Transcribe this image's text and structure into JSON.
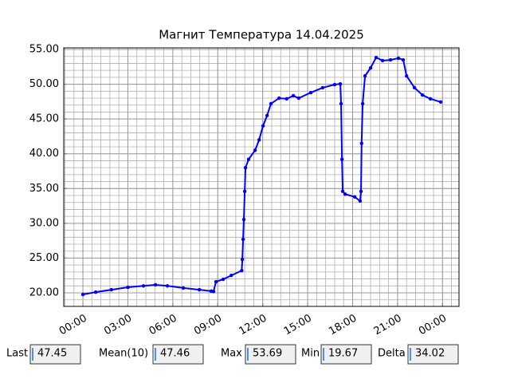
{
  "chart_data": {
    "type": "line",
    "title": "Магнит Температура 14.04.2025",
    "x": [
      0,
      0.85,
      1.9,
      3.0,
      4.04,
      4.84,
      5.64,
      6.7,
      7.77,
      8.56,
      8.72,
      8.88,
      9.36,
      9.9,
      10.6,
      10.64,
      10.69,
      10.74,
      10.8,
      10.85,
      11.06,
      11.49,
      11.76,
      12.02,
      12.29,
      12.55,
      13.09,
      13.6,
      14.04,
      14.4,
      15.21,
      16.0,
      16.8,
      17.18,
      17.23,
      17.29,
      17.34,
      17.5,
      18.14,
      18.5,
      18.56,
      18.6,
      18.67,
      18.83,
      19.2,
      19.57,
      20.0,
      20.53,
      21.06,
      21.38,
      21.6,
      22.13,
      22.66,
      23.19,
      23.88
    ],
    "series": [
      {
        "name": "Температура",
        "color": "#0000ff",
        "values": [
          19.77,
          20.1,
          20.45,
          20.8,
          21.0,
          21.15,
          21.0,
          20.7,
          20.45,
          20.25,
          20.2,
          21.6,
          21.95,
          22.5,
          23.2,
          24.8,
          27.7,
          30.55,
          34.6,
          38.0,
          39.2,
          40.5,
          42.0,
          44.0,
          45.5,
          47.2,
          48.0,
          47.9,
          48.35,
          48.0,
          48.8,
          49.5,
          49.95,
          50.05,
          47.2,
          39.2,
          34.6,
          34.2,
          33.8,
          33.2,
          34.6,
          41.5,
          47.2,
          51.2,
          52.35,
          53.85,
          53.4,
          53.5,
          53.75,
          53.5,
          51.2,
          49.5,
          48.45,
          47.9,
          47.45
        ]
      }
    ],
    "xlim": [
      -1.28,
      25.1
    ],
    "xticks": [
      {
        "value": 0,
        "label": "00:00"
      },
      {
        "value": 3,
        "label": "03:00"
      },
      {
        "value": 6,
        "label": "06:00"
      },
      {
        "value": 9,
        "label": "09:00"
      },
      {
        "value": 12,
        "label": "12:00"
      },
      {
        "value": 15,
        "label": "15:00"
      },
      {
        "value": 18,
        "label": "18:00"
      },
      {
        "value": 21,
        "label": "21:00"
      },
      {
        "value": 24,
        "label": "00:00"
      }
    ],
    "ylim": [
      18.05,
      55.23
    ],
    "yticks": [
      {
        "value": 20,
        "label": "20.00"
      },
      {
        "value": 25,
        "label": "25.00"
      },
      {
        "value": 30,
        "label": "30.00"
      },
      {
        "value": 35,
        "label": "35.00"
      },
      {
        "value": 40,
        "label": "40.00"
      },
      {
        "value": 45,
        "label": "45.00"
      },
      {
        "value": 50,
        "label": "50.00"
      },
      {
        "value": 55,
        "label": "55.00"
      }
    ],
    "grid": true,
    "xminor_step": 0.6,
    "yminor_step": 1
  },
  "stats": [
    {
      "label": "Last",
      "value": 47.45
    },
    {
      "label": "Mean(10)",
      "value": 47.46
    },
    {
      "label": "Max",
      "value": 53.69
    },
    {
      "label": "Min",
      "value": 19.67
    },
    {
      "label": "Delta",
      "value": 34.02
    }
  ]
}
